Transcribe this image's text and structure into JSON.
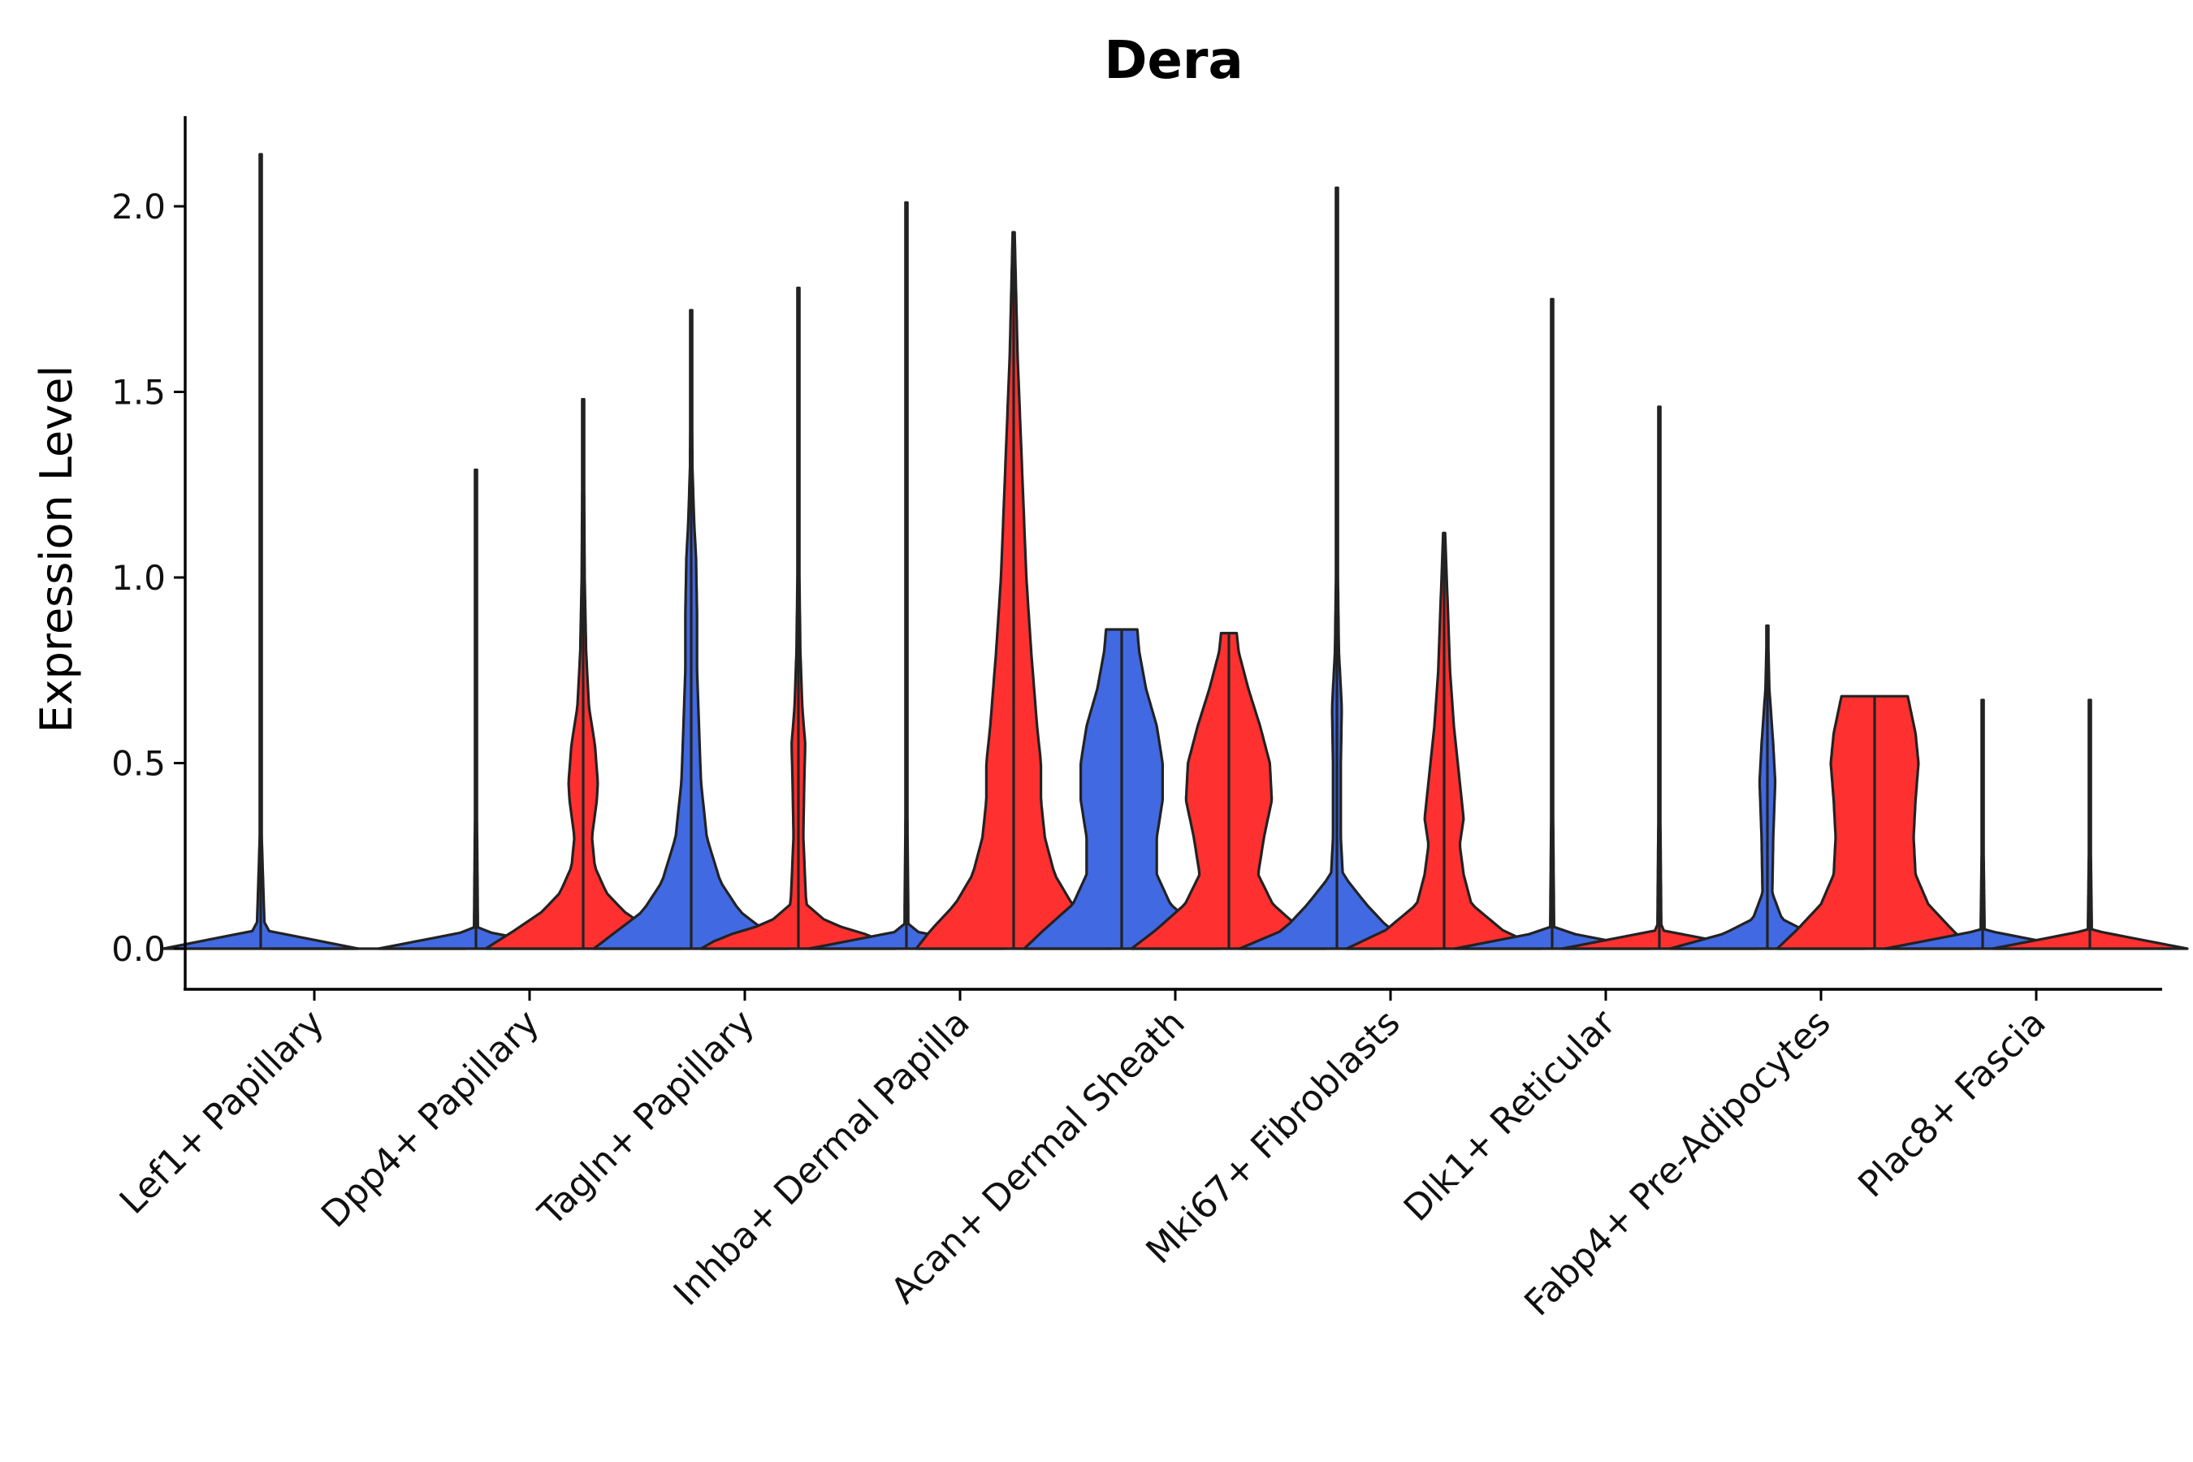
{
  "chart_data": {
    "type": "violin",
    "title": "Dera",
    "xlabel": "",
    "ylabel": "Expression Level",
    "ylim": [
      -0.11,
      2.25
    ],
    "yticks": [
      "0.0",
      "0.5",
      "1.0",
      "1.5",
      "2.0"
    ],
    "ytick_values": [
      0.0,
      0.5,
      1.0,
      1.5,
      2.0
    ],
    "split_colors": {
      "left": "#4169E1",
      "right": "#FF3030"
    },
    "categories": [
      "Lef1+ Papillary",
      "Dpp4+ Papillary",
      "Tagln+ Papillary",
      "Inhba+ Dermal Papilla",
      "Acan+ Dermal Sheath",
      "Mki67+ Fibroblasts",
      "Dlk1+ Reticular",
      "Fabp4+ Pre-Adipocytes",
      "Plac8+ Fascia"
    ],
    "series": [
      {
        "name": "left",
        "color": "#4169E1",
        "max_values": [
          2.14,
          1.29,
          1.72,
          2.01,
          0.86,
          2.05,
          1.75,
          0.87,
          0.67
        ],
        "density": [
          [
            [
              0,
              1
            ],
            [
              0.05,
              0.04
            ],
            [
              0.3,
              0.01
            ],
            [
              1.0,
              0.005
            ],
            [
              2.14,
              0.003
            ]
          ],
          [
            [
              0,
              1
            ],
            [
              0.05,
              0.02
            ],
            [
              0.5,
              0.005
            ],
            [
              1.29,
              0.003
            ]
          ],
          [
            [
              0,
              1
            ],
            [
              0.05,
              0.75
            ],
            [
              0.1,
              0.5
            ],
            [
              0.18,
              0.3
            ],
            [
              0.3,
              0.16
            ],
            [
              0.45,
              0.1
            ],
            [
              0.6,
              0.08
            ],
            [
              0.75,
              0.06
            ],
            [
              0.9,
              0.06
            ],
            [
              1.05,
              0.05
            ],
            [
              1.15,
              0.03
            ],
            [
              1.3,
              0.012
            ],
            [
              1.72,
              0.005
            ]
          ],
          [
            [
              0,
              1
            ],
            [
              0.05,
              0.02
            ],
            [
              0.5,
              0.005
            ],
            [
              2.01,
              0.003
            ]
          ],
          [
            [
              0,
              1
            ],
            [
              0.05,
              0.8
            ],
            [
              0.12,
              0.5
            ],
            [
              0.2,
              0.36
            ],
            [
              0.3,
              0.36
            ],
            [
              0.4,
              0.42
            ],
            [
              0.5,
              0.42
            ],
            [
              0.6,
              0.36
            ],
            [
              0.7,
              0.25
            ],
            [
              0.8,
              0.18
            ],
            [
              0.86,
              0.16
            ]
          ],
          [
            [
              0,
              1
            ],
            [
              0.05,
              0.55
            ],
            [
              0.12,
              0.3
            ],
            [
              0.2,
              0.06
            ],
            [
              0.3,
              0.04
            ],
            [
              0.5,
              0.04
            ],
            [
              0.65,
              0.05
            ],
            [
              0.8,
              0.02
            ],
            [
              1.0,
              0.01
            ],
            [
              1.4,
              0.008
            ],
            [
              2.05,
              0.003
            ]
          ],
          [
            [
              0,
              1
            ],
            [
              0.05,
              0.02
            ],
            [
              0.5,
              0.005
            ],
            [
              1.75,
              0.003
            ]
          ],
          [
            [
              0,
              1
            ],
            [
              0.04,
              0.45
            ],
            [
              0.08,
              0.15
            ],
            [
              0.15,
              0.05
            ],
            [
              0.3,
              0.06
            ],
            [
              0.45,
              0.08
            ],
            [
              0.55,
              0.06
            ],
            [
              0.7,
              0.02
            ],
            [
              0.87,
              0.005
            ]
          ],
          [
            [
              0,
              1
            ],
            [
              0.05,
              0.02
            ],
            [
              0.3,
              0.008
            ],
            [
              0.67,
              0.004
            ]
          ]
        ]
      },
      {
        "name": "right",
        "color": "#FF3030",
        "max_values": [
          0.0,
          1.48,
          1.78,
          1.93,
          0.85,
          1.12,
          1.46,
          0.68,
          0.67
        ],
        "density": [
          [
            [
              0,
              1
            ],
            [
              0.02,
              0.01
            ]
          ],
          [
            [
              0,
              1
            ],
            [
              0.05,
              0.7
            ],
            [
              0.1,
              0.42
            ],
            [
              0.15,
              0.24
            ],
            [
              0.22,
              0.12
            ],
            [
              0.3,
              0.09
            ],
            [
              0.4,
              0.14
            ],
            [
              0.45,
              0.15
            ],
            [
              0.55,
              0.12
            ],
            [
              0.65,
              0.06
            ],
            [
              0.8,
              0.03
            ],
            [
              1.0,
              0.015
            ],
            [
              1.48,
              0.005
            ]
          ],
          [
            [
              0,
              1
            ],
            [
              0.03,
              0.8
            ],
            [
              0.07,
              0.3
            ],
            [
              0.12,
              0.08
            ],
            [
              0.3,
              0.05
            ],
            [
              0.45,
              0.06
            ],
            [
              0.55,
              0.07
            ],
            [
              0.65,
              0.04
            ],
            [
              0.8,
              0.02
            ],
            [
              1.0,
              0.01
            ],
            [
              1.78,
              0.005
            ]
          ],
          [
            [
              0,
              1
            ],
            [
              0.05,
              0.85
            ],
            [
              0.12,
              0.6
            ],
            [
              0.2,
              0.42
            ],
            [
              0.3,
              0.32
            ],
            [
              0.4,
              0.28
            ],
            [
              0.5,
              0.28
            ],
            [
              0.6,
              0.24
            ],
            [
              0.8,
              0.18
            ],
            [
              1.0,
              0.13
            ],
            [
              1.2,
              0.1
            ],
            [
              1.4,
              0.07
            ],
            [
              1.6,
              0.04
            ],
            [
              1.93,
              0.01
            ]
          ],
          [
            [
              0,
              1
            ],
            [
              0.05,
              0.75
            ],
            [
              0.12,
              0.45
            ],
            [
              0.2,
              0.3
            ],
            [
              0.3,
              0.36
            ],
            [
              0.4,
              0.44
            ],
            [
              0.5,
              0.42
            ],
            [
              0.6,
              0.32
            ],
            [
              0.7,
              0.2
            ],
            [
              0.8,
              0.1
            ],
            [
              0.85,
              0.08
            ]
          ],
          [
            [
              0,
              1
            ],
            [
              0.05,
              0.6
            ],
            [
              0.12,
              0.28
            ],
            [
              0.2,
              0.2
            ],
            [
              0.28,
              0.16
            ],
            [
              0.35,
              0.2
            ],
            [
              0.45,
              0.16
            ],
            [
              0.6,
              0.1
            ],
            [
              0.75,
              0.06
            ],
            [
              0.9,
              0.04
            ],
            [
              1.12,
              0.01
            ]
          ],
          [
            [
              0,
              1
            ],
            [
              0.05,
              0.02
            ],
            [
              0.5,
              0.005
            ],
            [
              1.46,
              0.003
            ]
          ],
          [
            [
              0,
              1
            ],
            [
              0.05,
              0.8
            ],
            [
              0.12,
              0.55
            ],
            [
              0.2,
              0.42
            ],
            [
              0.3,
              0.4
            ],
            [
              0.4,
              0.42
            ],
            [
              0.5,
              0.45
            ],
            [
              0.58,
              0.42
            ],
            [
              0.63,
              0.38
            ],
            [
              0.68,
              0.34
            ]
          ],
          [
            [
              0,
              1
            ],
            [
              0.05,
              0.02
            ],
            [
              0.3,
              0.008
            ],
            [
              0.67,
              0.004
            ]
          ]
        ]
      }
    ]
  }
}
